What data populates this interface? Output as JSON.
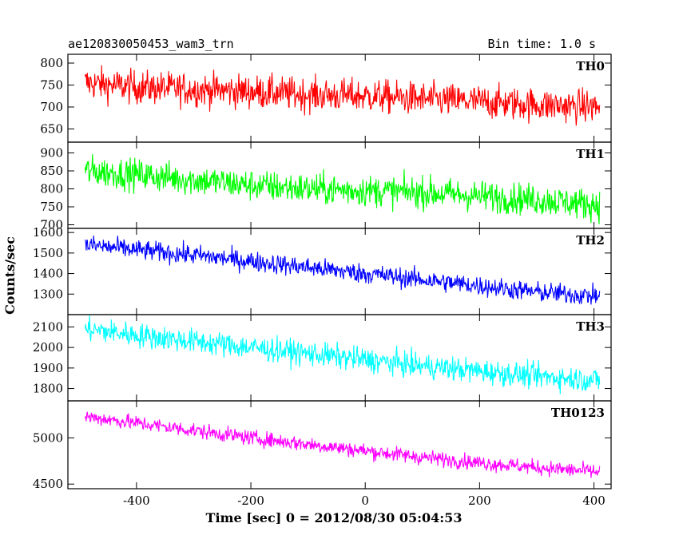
{
  "header": {
    "title": "ae120830050453_wam3_trn",
    "bin_time": "Bin time: 1.0 s"
  },
  "chart_data": {
    "type": "line",
    "xlabel": "Time [sec] 0 = 2012/08/30 05:04:53",
    "ylabel": "Counts/sec",
    "xlim": [
      -520,
      430
    ],
    "xticks": [
      -400,
      -200,
      0,
      200,
      400
    ],
    "x_range_data": [
      -490,
      410
    ],
    "panels": [
      {
        "name": "TH0",
        "color": "#ff0000",
        "ylim": [
          620,
          820
        ],
        "yticks": [
          650,
          700,
          750,
          800
        ],
        "x": [
          -490,
          -400,
          -300,
          -200,
          -100,
          0,
          100,
          200,
          300,
          410
        ],
        "values": [
          755,
          745,
          740,
          735,
          728,
          725,
          718,
          712,
          705,
          700
        ],
        "noise": 35
      },
      {
        "name": "TH1",
        "color": "#00ff00",
        "ylim": [
          690,
          930
        ],
        "yticks": [
          700,
          750,
          800,
          850,
          900
        ],
        "x": [
          -490,
          -400,
          -300,
          -200,
          -100,
          0,
          100,
          200,
          300,
          410
        ],
        "values": [
          850,
          840,
          825,
          810,
          800,
          795,
          790,
          780,
          770,
          755
        ],
        "noise": 40
      },
      {
        "name": "TH2",
        "color": "#0000ff",
        "ylim": [
          1200,
          1620
        ],
        "yticks": [
          1300,
          1400,
          1500,
          1600
        ],
        "x": [
          -490,
          -400,
          -300,
          -200,
          -100,
          0,
          100,
          200,
          300,
          410
        ],
        "values": [
          1540,
          1515,
          1490,
          1460,
          1430,
          1400,
          1370,
          1340,
          1310,
          1290
        ],
        "noise": 45
      },
      {
        "name": "TH3",
        "color": "#00ffff",
        "ylim": [
          1740,
          2160
        ],
        "yticks": [
          1800,
          1900,
          2000,
          2100
        ],
        "x": [
          -490,
          -400,
          -300,
          -200,
          -100,
          0,
          100,
          200,
          300,
          410
        ],
        "values": [
          2090,
          2060,
          2030,
          2000,
          1970,
          1940,
          1910,
          1885,
          1860,
          1840
        ],
        "noise": 55
      },
      {
        "name": "TH0123",
        "color": "#ff00ff",
        "ylim": [
          4450,
          5400
        ],
        "yticks": [
          4500,
          5000
        ],
        "x": [
          -490,
          -400,
          -300,
          -200,
          -100,
          0,
          100,
          200,
          300,
          410
        ],
        "values": [
          5230,
          5160,
          5080,
          5000,
          4930,
          4860,
          4790,
          4730,
          4680,
          4630
        ],
        "noise": 75
      }
    ]
  }
}
